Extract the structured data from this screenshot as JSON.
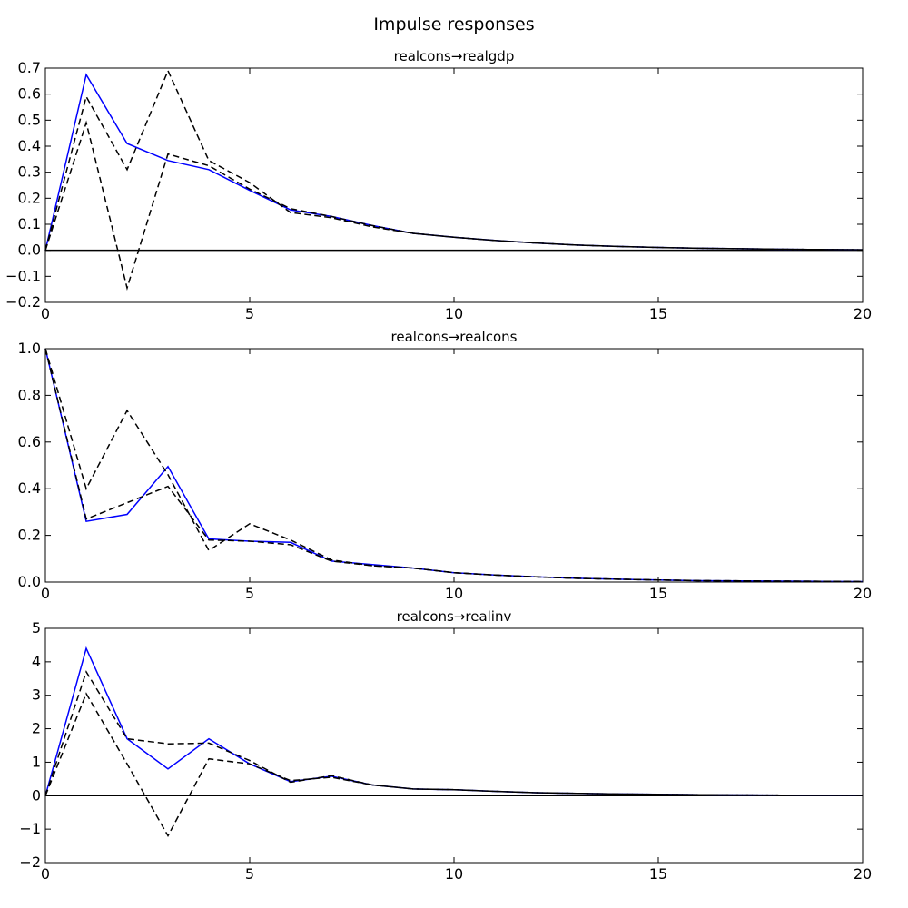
{
  "figure": {
    "title": "Impulse responses"
  },
  "colors": {
    "irf": "#0000ff",
    "band": "#000000",
    "zero_line": "#000000"
  },
  "chart_data": [
    {
      "type": "line",
      "title": "realcons→realgdp",
      "xlim": [
        0,
        20
      ],
      "ylim": [
        -0.2,
        0.7
      ],
      "xticks": [
        "0",
        "5",
        "10",
        "15",
        "20"
      ],
      "yticks": [
        "−0.2",
        "−0.1",
        "0.0",
        "0.1",
        "0.2",
        "0.3",
        "0.4",
        "0.5",
        "0.6",
        "0.7"
      ],
      "x": [
        0,
        1,
        2,
        3,
        4,
        5,
        6,
        7,
        8,
        9,
        10,
        11,
        12,
        13,
        14,
        15,
        16,
        17,
        18,
        19,
        20
      ],
      "series": [
        {
          "style": "solid",
          "values": [
            0,
            0.675,
            0.41,
            0.345,
            0.31,
            0.23,
            0.155,
            0.13,
            0.095,
            0.065,
            0.05,
            0.038,
            0.028,
            0.02,
            0.015,
            0.011,
            0.008,
            0.006,
            0.004,
            0.003,
            0.002
          ]
        },
        {
          "style": "dashed",
          "values": [
            0,
            0.59,
            0.31,
            0.69,
            0.345,
            0.26,
            0.145,
            0.125,
            0.09,
            0.065,
            0.05,
            0.038,
            0.028,
            0.02,
            0.015,
            0.011,
            0.008,
            0.006,
            0.004,
            0.003,
            0.002
          ]
        },
        {
          "style": "dashed",
          "values": [
            0,
            0.49,
            -0.145,
            0.37,
            0.325,
            0.235,
            0.16,
            0.13,
            0.095,
            0.065,
            0.05,
            0.038,
            0.028,
            0.02,
            0.015,
            0.011,
            0.008,
            0.006,
            0.004,
            0.003,
            0.002
          ]
        }
      ]
    },
    {
      "type": "line",
      "title": "realcons→realcons",
      "xlim": [
        0,
        20
      ],
      "ylim": [
        0,
        1.0
      ],
      "xticks": [
        "0",
        "5",
        "10",
        "15",
        "20"
      ],
      "yticks": [
        "0.0",
        "0.2",
        "0.4",
        "0.6",
        "0.8",
        "1.0"
      ],
      "x": [
        0,
        1,
        2,
        3,
        4,
        5,
        6,
        7,
        8,
        9,
        10,
        11,
        12,
        13,
        14,
        15,
        16,
        17,
        18,
        19,
        20
      ],
      "series": [
        {
          "style": "solid",
          "values": [
            1.0,
            0.26,
            0.29,
            0.495,
            0.185,
            0.175,
            0.17,
            0.09,
            0.075,
            0.06,
            0.04,
            0.03,
            0.022,
            0.016,
            0.012,
            0.009,
            0.006,
            0.005,
            0.004,
            0.003,
            0.002
          ]
        },
        {
          "style": "dashed",
          "values": [
            1.0,
            0.4,
            0.735,
            0.46,
            0.135,
            0.25,
            0.18,
            0.095,
            0.07,
            0.06,
            0.04,
            0.03,
            0.022,
            0.016,
            0.012,
            0.009,
            0.006,
            0.005,
            0.004,
            0.003,
            0.002
          ]
        },
        {
          "style": "dashed",
          "values": [
            1.0,
            0.27,
            0.34,
            0.41,
            0.18,
            0.175,
            0.16,
            0.09,
            0.07,
            0.06,
            0.04,
            0.03,
            0.022,
            0.016,
            0.012,
            0.009,
            0.006,
            0.005,
            0.004,
            0.003,
            0.002
          ]
        }
      ]
    },
    {
      "type": "line",
      "title": "realcons→realinv",
      "xlim": [
        0,
        20
      ],
      "ylim": [
        -2,
        5
      ],
      "xticks": [
        "0",
        "5",
        "10",
        "15",
        "20"
      ],
      "yticks": [
        "−2",
        "−1",
        "0",
        "1",
        "2",
        "3",
        "4",
        "5"
      ],
      "x": [
        0,
        1,
        2,
        3,
        4,
        5,
        6,
        7,
        8,
        9,
        10,
        11,
        12,
        13,
        14,
        15,
        16,
        17,
        18,
        19,
        20
      ],
      "series": [
        {
          "style": "solid",
          "values": [
            0,
            4.4,
            1.7,
            0.8,
            1.7,
            0.95,
            0.42,
            0.58,
            0.32,
            0.2,
            0.18,
            0.13,
            0.09,
            0.07,
            0.05,
            0.04,
            0.03,
            0.02,
            0.015,
            0.01,
            0.008
          ]
        },
        {
          "style": "dashed",
          "values": [
            0,
            3.7,
            1.7,
            1.55,
            1.57,
            1.05,
            0.4,
            0.6,
            0.32,
            0.2,
            0.18,
            0.13,
            0.09,
            0.07,
            0.05,
            0.04,
            0.03,
            0.02,
            0.015,
            0.01,
            0.008
          ]
        },
        {
          "style": "dashed",
          "values": [
            0,
            3.05,
            0.95,
            -1.2,
            1.1,
            0.95,
            0.45,
            0.55,
            0.32,
            0.2,
            0.18,
            0.13,
            0.09,
            0.07,
            0.05,
            0.04,
            0.03,
            0.02,
            0.015,
            0.01,
            0.008
          ]
        }
      ]
    }
  ]
}
